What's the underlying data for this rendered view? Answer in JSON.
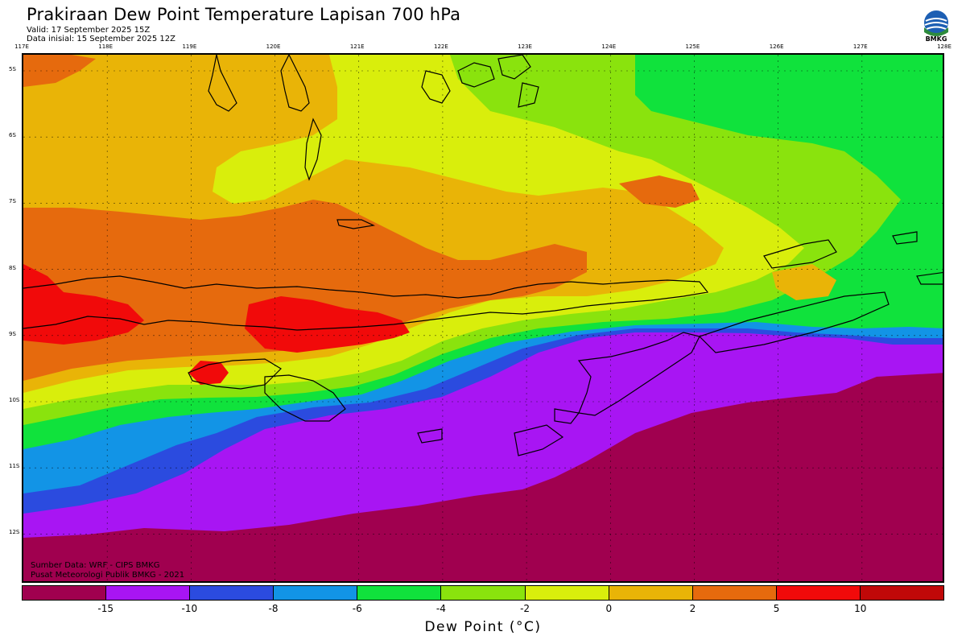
{
  "title": "Prakiraan Dew Point Temperature Lapisan 700 hPa",
  "valid": "Valid: 17 September 2025 15Z",
  "init": "Data inisial: 15 September 2025 12Z",
  "logo_text": "BMKG",
  "longitude_labels": [
    "117E",
    "118E",
    "119E",
    "120E",
    "121E",
    "122E",
    "123E",
    "124E",
    "125E",
    "126E",
    "127E",
    "128E"
  ],
  "latitude_labels": [
    "5S",
    "6S",
    "7S",
    "8S",
    "9S",
    "10S",
    "11S",
    "12S"
  ],
  "credits": {
    "source": "Sumber Data: WRF - CIPS BMKG",
    "org": "Pusat Meteorologi Publik BMKG - 2021"
  },
  "colorbar": {
    "title": "Dew Point (°C)",
    "ticks": [
      "-15",
      "-10",
      "-8",
      "-6",
      "-4",
      "-2",
      "0",
      "2",
      "5",
      "10"
    ],
    "colors": [
      "#a0004f",
      "#a815f3",
      "#2b4bdf",
      "#1294e6",
      "#10e23c",
      "#8ae30d",
      "#d9ee0c",
      "#e9b407",
      "#e66a0d",
      "#f10a0a",
      "#c00808"
    ]
  },
  "map": {
    "region_lon": [
      117,
      128
    ],
    "region_lat": [
      -4.8,
      -12.9
    ],
    "variable": "dew point temperature at 700 hPa",
    "units": "°C"
  }
}
